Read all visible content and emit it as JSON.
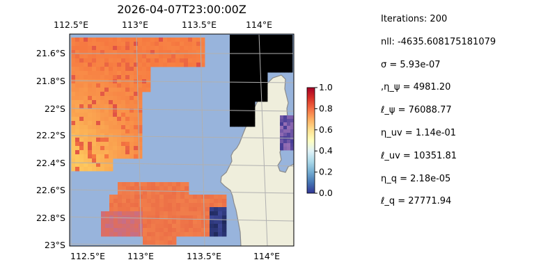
{
  "title": "2026-04-07T23:00:00Z",
  "map": {
    "lon_ticks_top": [
      "112.5°E",
      "113°E",
      "113.5°E",
      "114°E"
    ],
    "lon_ticks_bottom": [
      "112.5°E",
      "113°E",
      "113.5°E",
      "114°E"
    ],
    "lat_ticks": [
      "21.6°S",
      "21.8°S",
      "22°S",
      "22.2°S",
      "22.4°S",
      "22.6°S",
      "22.8°S",
      "23°S"
    ],
    "ocean_color": "#98b4dc",
    "land_color": "#efeedc",
    "coast_color": "#8a8a8a",
    "colormap": "RdYlBu_r"
  },
  "colorbar": {
    "ticks": [
      "1.0",
      "0.8",
      "0.6",
      "0.4",
      "0.2",
      "0.0"
    ],
    "range": [
      0,
      1
    ]
  },
  "stats": [
    "Iterations: 200",
    "nll: -4635.608175181079",
    "σ = 5.93e-07",
    ",η_ψ = 4981.20",
    "ℓ_ψ = 76088.77",
    "η_uv = 1.14e-01",
    "ℓ_uv = 10351.81",
    "η_q = 2.18e-05",
    "ℓ_q = 27771.94"
  ]
}
